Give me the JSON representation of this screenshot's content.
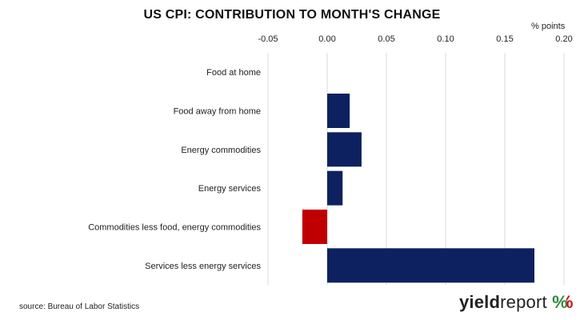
{
  "chart_data": {
    "type": "bar",
    "orientation": "horizontal",
    "title": "US CPI: CONTRIBUTION TO MONTH'S CHANGE",
    "unit_label": "% points",
    "categories": [
      "Food at home",
      "Food away from home",
      "Energy commodities",
      "Energy services",
      "Commodities less food, energy commodities",
      "Services less energy services"
    ],
    "values": [
      0.0,
      0.019,
      0.029,
      0.013,
      -0.021,
      0.175
    ],
    "xlim": [
      -0.05,
      0.2
    ],
    "xticks": [
      "-0.05",
      "0.00",
      "0.05",
      "0.10",
      "0.15",
      "0.20"
    ],
    "x_axis_position": "top",
    "grid": "vertical",
    "colors": {
      "positive": "#0d2160",
      "negative": "#c00000",
      "grid": "#d9d9d9"
    }
  },
  "footer": {
    "source": "source: Bureau of Labor Statistics",
    "logo_part1": "yield",
    "logo_part2": "report",
    "logo_symbol": "%"
  }
}
